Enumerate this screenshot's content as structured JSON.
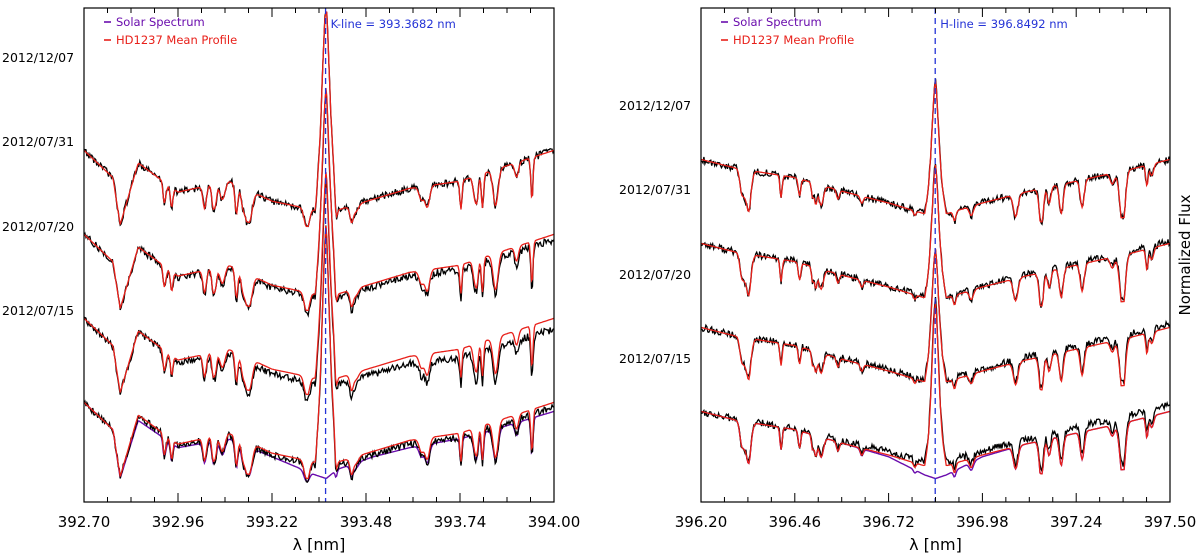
{
  "chart_data": [
    {
      "type": "line",
      "xlabel": "λ [nm]",
      "ylabel": "",
      "xlim": [
        392.7,
        394.0
      ],
      "xticks": [
        "392.70",
        "392.96",
        "393.22",
        "393.48",
        "393.74",
        "394.00"
      ],
      "legend": [
        {
          "label": "Solar Spectrum",
          "color": "#6a0dad"
        },
        {
          "label": "HD1237 Mean Profile",
          "color": "#e8201a"
        }
      ],
      "legend_position": "top-left",
      "line_marker": {
        "x": 393.3682,
        "label": "K-line = 393.3682 nm",
        "color": "#2433d6"
      },
      "date_labels": [
        "2012/12/07",
        "2012/07/31",
        "2012/07/20",
        "2012/07/15"
      ],
      "series": [
        {
          "name": "Solar Spectrum",
          "color": "#6a0dad",
          "x": [
            392.7,
            392.78,
            392.8,
            392.85,
            392.96,
            393.1,
            393.22,
            393.34,
            393.37,
            393.4,
            393.5,
            393.6,
            393.74,
            393.8,
            394.0
          ],
          "y": [
            0.45,
            0.3,
            0.03,
            0.35,
            0.2,
            0.25,
            0.15,
            0.05,
            0.03,
            0.08,
            0.15,
            0.2,
            0.25,
            0.28,
            0.4
          ]
        },
        {
          "name": "HD1237 Mean Profile",
          "color": "#e8201a",
          "x": [
            392.7,
            392.78,
            392.8,
            392.85,
            392.96,
            393.1,
            393.22,
            393.34,
            393.37,
            393.4,
            393.5,
            393.6,
            393.74,
            393.8,
            394.0
          ],
          "y": [
            0.45,
            0.3,
            0.04,
            0.38,
            0.22,
            0.28,
            0.17,
            0.12,
            0.9,
            0.12,
            0.18,
            0.24,
            0.28,
            0.32,
            0.45
          ]
        }
      ],
      "color_observed": "#000000",
      "color_mean": "#e8201a"
    },
    {
      "type": "line",
      "xlabel": "λ [nm]",
      "ylabel": "Normalized Flux",
      "xlim": [
        396.2,
        397.5
      ],
      "xticks": [
        "396.20",
        "396.46",
        "396.72",
        "396.98",
        "397.24",
        "397.50"
      ],
      "legend": [
        {
          "label": "Solar Spectrum",
          "color": "#6a0dad"
        },
        {
          "label": "HD1237 Mean Profile",
          "color": "#e8201a"
        }
      ],
      "legend_position": "top-left",
      "line_marker": {
        "x": 396.8492,
        "label": "H-line = 396.8492 nm",
        "color": "#2433d6"
      },
      "date_labels": [
        "2012/12/07",
        "2012/07/31",
        "2012/07/20",
        "2012/07/15"
      ],
      "series": [
        {
          "name": "Solar Spectrum",
          "color": "#6a0dad",
          "x": [
            396.2,
            396.3,
            396.46,
            396.6,
            396.72,
            396.82,
            396.85,
            396.88,
            396.98,
            397.1,
            397.24,
            397.4,
            397.5
          ],
          "y": [
            0.4,
            0.35,
            0.3,
            0.22,
            0.15,
            0.05,
            0.03,
            0.05,
            0.15,
            0.22,
            0.28,
            0.35,
            0.4
          ]
        },
        {
          "name": "HD1237 Mean Profile",
          "color": "#e8201a",
          "x": [
            396.2,
            396.3,
            396.46,
            396.6,
            396.72,
            396.82,
            396.85,
            396.88,
            396.98,
            397.1,
            397.24,
            397.4,
            397.5
          ],
          "y": [
            0.4,
            0.35,
            0.3,
            0.22,
            0.16,
            0.1,
            0.45,
            0.1,
            0.16,
            0.22,
            0.28,
            0.35,
            0.4
          ]
        }
      ],
      "color_observed": "#000000",
      "color_mean": "#e8201a"
    }
  ]
}
